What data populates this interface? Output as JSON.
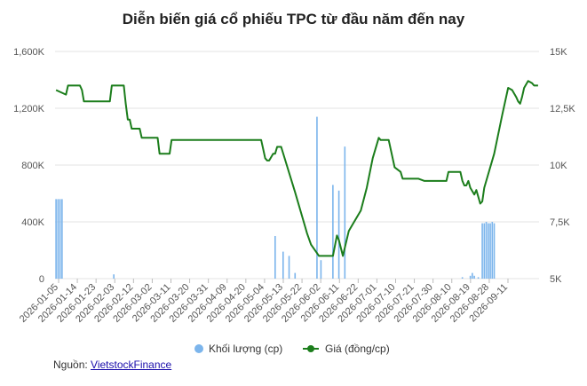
{
  "chart_data": {
    "type": "bar-line",
    "title": "Diễn biến giá cổ phiếu TPC từ đầu năm đến nay",
    "x_tick_labels": [
      "2026-01-05",
      "2026-01-14",
      "2026-01-23",
      "2026-02-03",
      "2026-02-12",
      "2026-03-02",
      "2026-03-11",
      "2026-03-20",
      "2026-03-31",
      "2026-04-09",
      "2026-04-20",
      "2026-05-04",
      "2026-05-13",
      "2026-05-22",
      "2026-06-02",
      "2026-06-11",
      "2026-06-22",
      "2026-07-01",
      "2026-07-10",
      "2026-07-21",
      "2026-07-30",
      "2026-08-10",
      "2026-08-19",
      "2026-08-28",
      "2026-09-11"
    ],
    "y_left": {
      "ticks": [
        "0",
        "400K",
        "800K",
        "1,200K",
        "1,600K"
      ],
      "range": [
        0,
        1600000
      ]
    },
    "y_right": {
      "ticks": [
        "5K",
        "7,5K",
        "10K",
        "12,5K",
        "15K"
      ],
      "range": [
        5000,
        15000
      ]
    },
    "series": [
      {
        "name": "Khối lượng (cp)",
        "type": "bar",
        "color": "#7cb5ec",
        "axis": "left",
        "points": [
          [
            0,
            560000
          ],
          [
            1,
            560000
          ],
          [
            2,
            560000
          ],
          [
            3,
            560000
          ],
          [
            29,
            30000
          ],
          [
            110,
            300000
          ],
          [
            114,
            190000
          ],
          [
            117,
            160000
          ],
          [
            120,
            40000
          ],
          [
            131,
            1140000
          ],
          [
            133,
            130000
          ],
          [
            139,
            660000
          ],
          [
            142,
            620000
          ],
          [
            145,
            930000
          ],
          [
            204,
            10000
          ],
          [
            208,
            20000
          ],
          [
            209,
            40000
          ],
          [
            210,
            20000
          ],
          [
            212,
            10000
          ],
          [
            214,
            390000
          ],
          [
            215,
            390000
          ],
          [
            216,
            400000
          ],
          [
            217,
            390000
          ],
          [
            218,
            390000
          ],
          [
            219,
            400000
          ],
          [
            220,
            390000
          ]
        ]
      },
      {
        "name": "Giá (đồng/cp)",
        "type": "line",
        "color": "#1b7d1b",
        "axis": "right",
        "points": [
          [
            0,
            13300
          ],
          [
            5,
            13100
          ],
          [
            6,
            13500
          ],
          [
            12,
            13500
          ],
          [
            13,
            13300
          ],
          [
            14,
            12800
          ],
          [
            27,
            12800
          ],
          [
            28,
            13500
          ],
          [
            34,
            13500
          ],
          [
            35,
            12700
          ],
          [
            36,
            12000
          ],
          [
            37,
            12000
          ],
          [
            38,
            11600
          ],
          [
            42,
            11600
          ],
          [
            43,
            11200
          ],
          [
            51,
            11200
          ],
          [
            52,
            10500
          ],
          [
            57,
            10500
          ],
          [
            58,
            11100
          ],
          [
            93,
            11100
          ],
          [
            103,
            11100
          ],
          [
            104,
            10700
          ],
          [
            105,
            10300
          ],
          [
            106,
            10200
          ],
          [
            107,
            10200
          ],
          [
            109,
            10500
          ],
          [
            110,
            10500
          ],
          [
            111,
            10800
          ],
          [
            113,
            10800
          ],
          [
            120,
            8800
          ],
          [
            125,
            7300
          ],
          [
            126,
            7000
          ],
          [
            128,
            6500
          ],
          [
            132,
            6000
          ],
          [
            133,
            6000
          ],
          [
            139,
            6000
          ],
          [
            141,
            6900
          ],
          [
            142,
            6700
          ],
          [
            144,
            6000
          ],
          [
            147,
            7100
          ],
          [
            153,
            8000
          ],
          [
            156,
            9000
          ],
          [
            159,
            10300
          ],
          [
            162,
            11200
          ],
          [
            163,
            11100
          ],
          [
            165,
            11100
          ],
          [
            167,
            11100
          ],
          [
            170,
            9900
          ],
          [
            173,
            9700
          ],
          [
            174,
            9400
          ],
          [
            182,
            9400
          ],
          [
            185,
            9300
          ],
          [
            192,
            9300
          ],
          [
            196,
            9300
          ],
          [
            197,
            9700
          ],
          [
            203,
            9700
          ],
          [
            204,
            9300
          ],
          [
            205,
            9100
          ],
          [
            206,
            9100
          ],
          [
            207,
            9300
          ],
          [
            208,
            9000
          ],
          [
            210,
            8700
          ],
          [
            211,
            8900
          ],
          [
            212,
            8600
          ],
          [
            213,
            8300
          ],
          [
            214,
            8400
          ],
          [
            215,
            9000
          ],
          [
            220,
            10500
          ],
          [
            224,
            12200
          ],
          [
            227,
            13400
          ],
          [
            229,
            13300
          ],
          [
            231,
            13000
          ],
          [
            232,
            12800
          ],
          [
            233,
            12700
          ],
          [
            234,
            13000
          ],
          [
            235,
            13400
          ],
          [
            237,
            13700
          ],
          [
            239,
            13600
          ],
          [
            240,
            13500
          ],
          [
            241,
            13500
          ],
          [
            242,
            13500
          ]
        ]
      }
    ],
    "legend_position": "bottom",
    "grid": "horizontal"
  },
  "source": {
    "label": "Nguồn: ",
    "link_text": "VietstockFinance"
  }
}
